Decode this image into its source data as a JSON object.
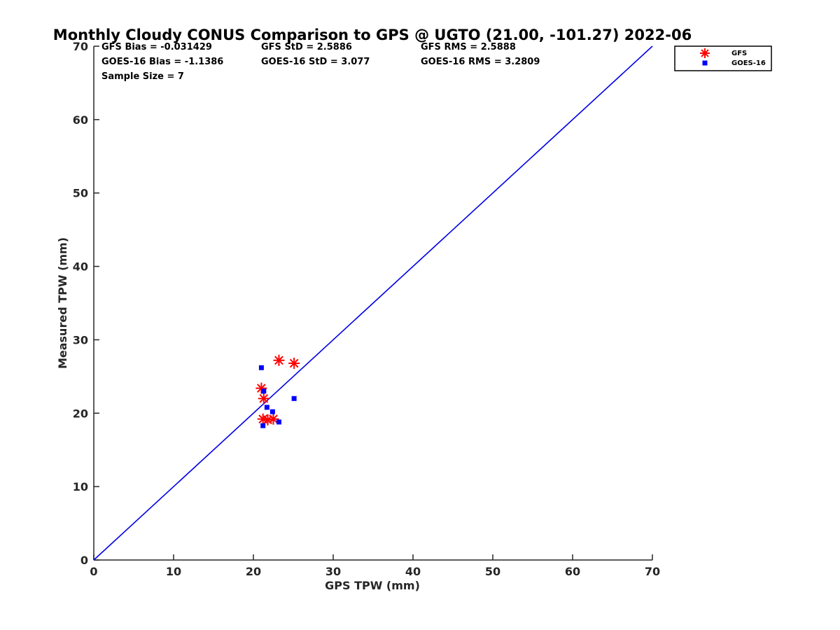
{
  "chart_data": {
    "type": "scatter",
    "title": "Monthly Cloudy CONUS Comparison to GPS @ UGTO (21.00, -101.27) 2022-06",
    "xlabel": "GPS TPW (mm)",
    "ylabel": "Measured TPW (mm)",
    "xlim": [
      0,
      70
    ],
    "ylim": [
      0,
      70
    ],
    "xticks": [
      0,
      10,
      20,
      30,
      40,
      50,
      60,
      70
    ],
    "yticks": [
      0,
      10,
      20,
      30,
      40,
      50,
      60,
      70
    ],
    "stats": [
      "GFS Bias = -0.031429",
      "GFS StD = 2.5886",
      "GFS RMS = 2.5888",
      "GOES-16 Bias = -1.1386",
      "GOES-16 StD = 3.077",
      "GOES-16 RMS = 3.2809",
      "Sample Size = 7"
    ],
    "one_to_one_line": {
      "from": [
        0,
        0
      ],
      "to": [
        70,
        70
      ],
      "color": "#0000e6"
    },
    "series": [
      {
        "name": "GFS",
        "marker": "asterisk",
        "color": "#ff0000",
        "points": [
          [
            21.0,
            23.4
          ],
          [
            21.3,
            22.0
          ],
          [
            23.2,
            27.2
          ],
          [
            25.1,
            26.8
          ],
          [
            21.2,
            19.2
          ],
          [
            21.8,
            19.1
          ],
          [
            22.5,
            19.2
          ]
        ]
      },
      {
        "name": "GOES-16",
        "marker": "square",
        "color": "#0000ff",
        "points": [
          [
            21.0,
            26.2
          ],
          [
            21.3,
            23.0
          ],
          [
            21.7,
            20.8
          ],
          [
            22.4,
            20.2
          ],
          [
            21.2,
            18.3
          ],
          [
            23.2,
            18.8
          ],
          [
            25.1,
            22.0
          ]
        ]
      }
    ],
    "legend": {
      "position": "top-right, outside plot",
      "entries": [
        "GFS",
        "GOES-16"
      ]
    }
  }
}
